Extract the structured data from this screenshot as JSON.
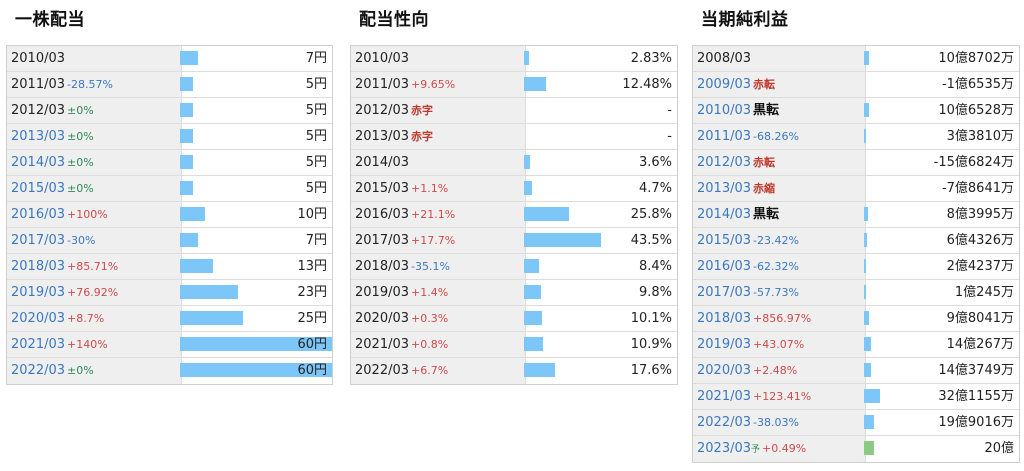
{
  "panels": [
    {
      "title": "一株配当",
      "rows": [
        {
          "year": "2010/03",
          "change": "",
          "dir": "",
          "tag": "",
          "tag_style": "",
          "forecast": "",
          "value": "7円",
          "frac": 0.1167,
          "link": false
        },
        {
          "year": "2011/03",
          "change": "-28.57%",
          "dir": "down",
          "tag": "",
          "tag_style": "",
          "forecast": "",
          "value": "5円",
          "frac": 0.0833,
          "link": false
        },
        {
          "year": "2012/03",
          "change": "±0%",
          "dir": "flat",
          "tag": "",
          "tag_style": "",
          "forecast": "",
          "value": "5円",
          "frac": 0.0833,
          "link": false
        },
        {
          "year": "2013/03",
          "change": "±0%",
          "dir": "flat",
          "tag": "",
          "tag_style": "",
          "forecast": "",
          "value": "5円",
          "frac": 0.0833,
          "link": true
        },
        {
          "year": "2014/03",
          "change": "±0%",
          "dir": "flat",
          "tag": "",
          "tag_style": "",
          "forecast": "",
          "value": "5円",
          "frac": 0.0833,
          "link": true
        },
        {
          "year": "2015/03",
          "change": "±0%",
          "dir": "flat",
          "tag": "",
          "tag_style": "",
          "forecast": "",
          "value": "5円",
          "frac": 0.0833,
          "link": true
        },
        {
          "year": "2016/03",
          "change": "+100%",
          "dir": "up",
          "tag": "",
          "tag_style": "",
          "forecast": "",
          "value": "10円",
          "frac": 0.1667,
          "link": true
        },
        {
          "year": "2017/03",
          "change": "-30%",
          "dir": "down",
          "tag": "",
          "tag_style": "",
          "forecast": "",
          "value": "7円",
          "frac": 0.1167,
          "link": true
        },
        {
          "year": "2018/03",
          "change": "+85.71%",
          "dir": "up",
          "tag": "",
          "tag_style": "",
          "forecast": "",
          "value": "13円",
          "frac": 0.2167,
          "link": true
        },
        {
          "year": "2019/03",
          "change": "+76.92%",
          "dir": "up",
          "tag": "",
          "tag_style": "",
          "forecast": "",
          "value": "23円",
          "frac": 0.3833,
          "link": true
        },
        {
          "year": "2020/03",
          "change": "+8.7%",
          "dir": "up",
          "tag": "",
          "tag_style": "",
          "forecast": "",
          "value": "25円",
          "frac": 0.4167,
          "link": true
        },
        {
          "year": "2021/03",
          "change": "+140%",
          "dir": "up",
          "tag": "",
          "tag_style": "",
          "forecast": "",
          "value": "60円",
          "frac": 1.0,
          "link": true
        },
        {
          "year": "2022/03",
          "change": "±0%",
          "dir": "flat",
          "tag": "",
          "tag_style": "",
          "forecast": "",
          "value": "60円",
          "frac": 1.0,
          "link": true
        }
      ]
    },
    {
      "title": "配当性向",
      "rows": [
        {
          "year": "2010/03",
          "change": "",
          "dir": "",
          "tag": "",
          "tag_style": "",
          "forecast": "",
          "value": "2.83%",
          "frac": 0.0325,
          "link": false
        },
        {
          "year": "2011/03",
          "change": "+9.65%",
          "dir": "up",
          "tag": "",
          "tag_style": "",
          "forecast": "",
          "value": "12.48%",
          "frac": 0.1435,
          "link": false
        },
        {
          "year": "2012/03",
          "change": "",
          "dir": "",
          "tag": "赤字",
          "tag_style": "red",
          "forecast": "",
          "value": "-",
          "frac": 0,
          "link": false
        },
        {
          "year": "2013/03",
          "change": "",
          "dir": "",
          "tag": "赤字",
          "tag_style": "red",
          "forecast": "",
          "value": "-",
          "frac": 0,
          "link": false
        },
        {
          "year": "2014/03",
          "change": "",
          "dir": "",
          "tag": "",
          "tag_style": "",
          "forecast": "",
          "value": "3.6%",
          "frac": 0.0414,
          "link": false
        },
        {
          "year": "2015/03",
          "change": "+1.1%",
          "dir": "up",
          "tag": "",
          "tag_style": "",
          "forecast": "",
          "value": "4.7%",
          "frac": 0.054,
          "link": false
        },
        {
          "year": "2016/03",
          "change": "+21.1%",
          "dir": "up",
          "tag": "",
          "tag_style": "",
          "forecast": "",
          "value": "25.8%",
          "frac": 0.2966,
          "link": false
        },
        {
          "year": "2017/03",
          "change": "+17.7%",
          "dir": "up",
          "tag": "",
          "tag_style": "",
          "forecast": "",
          "value": "43.5%",
          "frac": 0.5,
          "link": false
        },
        {
          "year": "2018/03",
          "change": "-35.1%",
          "dir": "down",
          "tag": "",
          "tag_style": "",
          "forecast": "",
          "value": "8.4%",
          "frac": 0.0966,
          "link": false
        },
        {
          "year": "2019/03",
          "change": "+1.4%",
          "dir": "up",
          "tag": "",
          "tag_style": "",
          "forecast": "",
          "value": "9.8%",
          "frac": 0.1126,
          "link": false
        },
        {
          "year": "2020/03",
          "change": "+0.3%",
          "dir": "up",
          "tag": "",
          "tag_style": "",
          "forecast": "",
          "value": "10.1%",
          "frac": 0.1161,
          "link": false
        },
        {
          "year": "2021/03",
          "change": "+0.8%",
          "dir": "up",
          "tag": "",
          "tag_style": "",
          "forecast": "",
          "value": "10.9%",
          "frac": 0.1253,
          "link": false
        },
        {
          "year": "2022/03",
          "change": "+6.7%",
          "dir": "up",
          "tag": "",
          "tag_style": "",
          "forecast": "",
          "value": "17.6%",
          "frac": 0.2023,
          "link": false
        }
      ]
    },
    {
      "title": "当期純利益",
      "rows": [
        {
          "year": "2008/03",
          "change": "",
          "dir": "",
          "tag": "",
          "tag_style": "",
          "forecast": "",
          "value": "10億8702万",
          "frac": 0.0339,
          "link": false
        },
        {
          "year": "2009/03",
          "change": "",
          "dir": "",
          "tag": "赤転",
          "tag_style": "red",
          "forecast": "",
          "value": "-1億6535万",
          "frac": 0,
          "link": true
        },
        {
          "year": "2010/03",
          "change": "",
          "dir": "",
          "tag": "黒転",
          "tag_style": "black",
          "forecast": "",
          "value": "10億6528万",
          "frac": 0.0333,
          "link": true
        },
        {
          "year": "2011/03",
          "change": "-68.26%",
          "dir": "down",
          "tag": "",
          "tag_style": "",
          "forecast": "",
          "value": "3億3810万",
          "frac": 0.0106,
          "link": true
        },
        {
          "year": "2012/03",
          "change": "",
          "dir": "",
          "tag": "赤転",
          "tag_style": "red",
          "forecast": "",
          "value": "-15億6824万",
          "frac": 0,
          "link": true
        },
        {
          "year": "2013/03",
          "change": "",
          "dir": "",
          "tag": "赤縮",
          "tag_style": "red",
          "forecast": "",
          "value": "-7億8641万",
          "frac": 0,
          "link": true
        },
        {
          "year": "2014/03",
          "change": "",
          "dir": "",
          "tag": "黒転",
          "tag_style": "black",
          "forecast": "",
          "value": "8億3995万",
          "frac": 0.0262,
          "link": true
        },
        {
          "year": "2015/03",
          "change": "-23.42%",
          "dir": "down",
          "tag": "",
          "tag_style": "",
          "forecast": "",
          "value": "6億4326万",
          "frac": 0.0201,
          "link": true
        },
        {
          "year": "2016/03",
          "change": "-62.32%",
          "dir": "down",
          "tag": "",
          "tag_style": "",
          "forecast": "",
          "value": "2億4237万",
          "frac": 0.0076,
          "link": true
        },
        {
          "year": "2017/03",
          "change": "-57.73%",
          "dir": "down",
          "tag": "",
          "tag_style": "",
          "forecast": "",
          "value": "1億245万",
          "frac": 0.0032,
          "link": true
        },
        {
          "year": "2018/03",
          "change": "+856.97%",
          "dir": "up",
          "tag": "",
          "tag_style": "",
          "forecast": "",
          "value": "9億8041万",
          "frac": 0.0306,
          "link": true
        },
        {
          "year": "2019/03",
          "change": "+43.07%",
          "dir": "up",
          "tag": "",
          "tag_style": "",
          "forecast": "",
          "value": "14億267万",
          "frac": 0.0438,
          "link": true
        },
        {
          "year": "2020/03",
          "change": "+2.48%",
          "dir": "up",
          "tag": "",
          "tag_style": "",
          "forecast": "",
          "value": "14億3749万",
          "frac": 0.0449,
          "link": true
        },
        {
          "year": "2021/03",
          "change": "+123.41%",
          "dir": "up",
          "tag": "",
          "tag_style": "",
          "forecast": "",
          "value": "32億1155万",
          "frac": 0.1004,
          "link": true
        },
        {
          "year": "2022/03",
          "change": "-38.03%",
          "dir": "down",
          "tag": "",
          "tag_style": "",
          "forecast": "",
          "value": "19億9016万",
          "frac": 0.0622,
          "link": true
        },
        {
          "year": "2023/03",
          "change": "+0.49%",
          "dir": "up",
          "tag": "",
          "tag_style": "",
          "forecast": "予",
          "value": "20億",
          "frac": 0.0625,
          "link": true,
          "bar_color": "green"
        }
      ]
    }
  ]
}
